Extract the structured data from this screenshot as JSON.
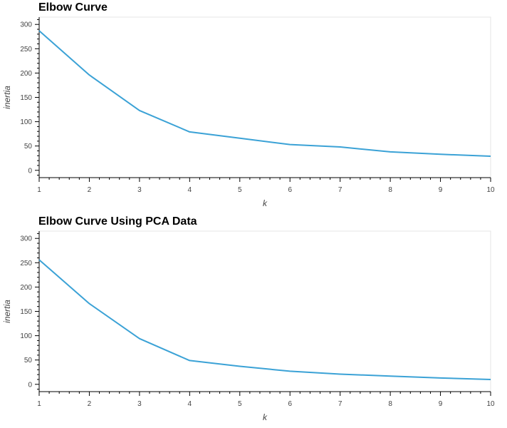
{
  "chart_data": [
    {
      "type": "line",
      "title": "Elbow Curve",
      "xlabel": "k",
      "ylabel": "inertia",
      "x": [
        1,
        2,
        3,
        4,
        5,
        6,
        7,
        8,
        9,
        10
      ],
      "series": [
        {
          "values": [
            287,
            196,
            123,
            79,
            66,
            53,
            48,
            38,
            33,
            29
          ]
        }
      ],
      "xlim": [
        1,
        10
      ],
      "ylim": [
        -15,
        315
      ],
      "yticks": [
        0,
        50,
        100,
        150,
        200,
        250,
        300
      ],
      "xticks": [
        1,
        2,
        3,
        4,
        5,
        6,
        7,
        8,
        9,
        10
      ],
      "color": "#3ba2d6",
      "grid": false
    },
    {
      "type": "line",
      "title": "Elbow Curve Using PCA Data",
      "xlabel": "k",
      "ylabel": "inertia",
      "x": [
        1,
        2,
        3,
        4,
        5,
        6,
        7,
        8,
        9,
        10
      ],
      "series": [
        {
          "values": [
            256,
            166,
            94,
            49,
            37,
            27,
            21,
            17,
            13,
            10
          ]
        }
      ],
      "xlim": [
        1,
        10
      ],
      "ylim": [
        -15,
        315
      ],
      "yticks": [
        0,
        50,
        100,
        150,
        200,
        250,
        300
      ],
      "xticks": [
        1,
        2,
        3,
        4,
        5,
        6,
        7,
        8,
        9,
        10
      ],
      "color": "#3ba2d6",
      "grid": false
    }
  ]
}
